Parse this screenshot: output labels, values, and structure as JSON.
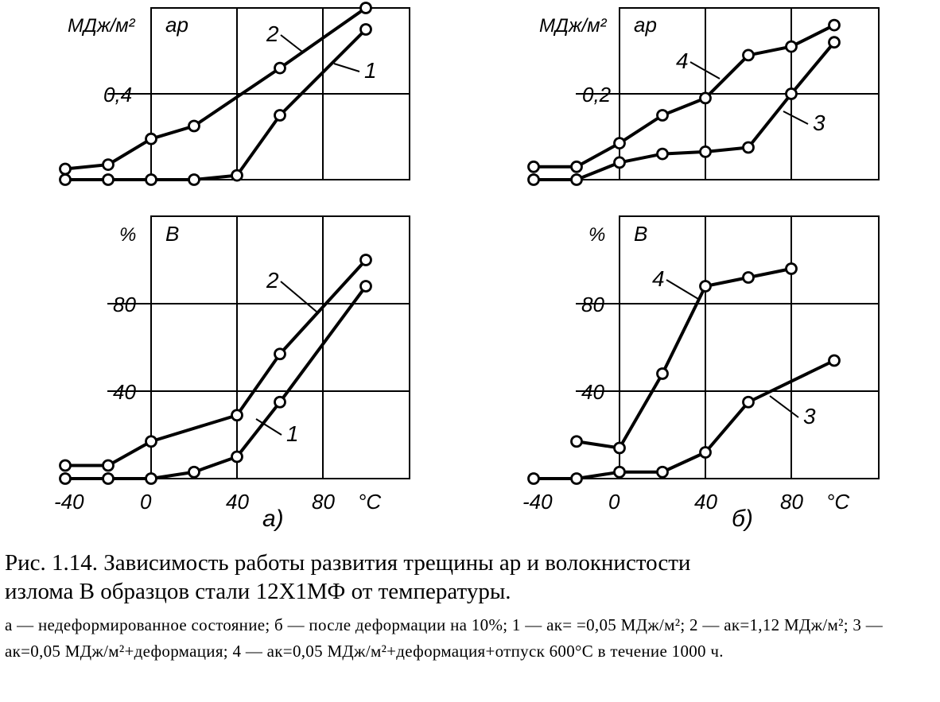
{
  "figure": {
    "panels": {
      "a": {
        "label": "а)"
      },
      "b": {
        "label": "б)"
      }
    },
    "x_ticks": [
      "-40",
      "0",
      "40",
      "80"
    ],
    "x_unit": "°C",
    "ap_units": "МДж/м²",
    "ap_symbol": "ap",
    "b_units": "%",
    "b_symbol": "B",
    "ap_tick_a": "0,4",
    "ap_tick_b": "0,2",
    "b_ticks": [
      "40",
      "80"
    ]
  },
  "caption": {
    "title_line1": "Рис. 1.14. Зависимость работы развития трещины ap и волокнистости",
    "title_line2": "излома B образцов стали 12Х1МФ от температуры.",
    "notes": "а — недеформированное состояние; б — после деформации на 10%; 1 — aк= =0,05 МДж/м²; 2 — aк=1,12 МДж/м²; 3 — aк=0,05 МДж/м²+деформация; 4 — aк=0,05 МДж/м²+деформация+отпуск 600°С в течение 1000 ч."
  },
  "chart_data": [
    {
      "type": "line",
      "panel": "а)",
      "title": "",
      "xlabel": "°C",
      "ylabel": "МДж/м² ap",
      "xlim": [
        -40,
        100
      ],
      "ylim": [
        0,
        0.8
      ],
      "grid": true,
      "series": [
        {
          "name": "1",
          "x": [
            -40,
            -20,
            0,
            20,
            40,
            60,
            100
          ],
          "y": [
            0,
            0,
            0,
            0,
            0.02,
            0.3,
            0.7
          ]
        },
        {
          "name": "2",
          "x": [
            -40,
            -20,
            0,
            20,
            60,
            100
          ],
          "y": [
            0.05,
            0.07,
            0.19,
            0.25,
            0.52,
            0.8
          ]
        }
      ]
    },
    {
      "type": "line",
      "panel": "а)",
      "title": "",
      "xlabel": "°C",
      "ylabel": "% B",
      "xlim": [
        -40,
        100
      ],
      "ylim": [
        0,
        120
      ],
      "grid": true,
      "series": [
        {
          "name": "1",
          "x": [
            -40,
            -20,
            0,
            20,
            40,
            60,
            100
          ],
          "y": [
            0,
            0,
            0,
            3,
            10,
            35,
            88
          ]
        },
        {
          "name": "2",
          "x": [
            -40,
            -20,
            0,
            40,
            60,
            100
          ],
          "y": [
            6,
            6,
            17,
            29,
            57,
            100
          ]
        }
      ]
    },
    {
      "type": "line",
      "panel": "б)",
      "title": "",
      "xlabel": "°C",
      "ylabel": "МДж/м² ap",
      "xlim": [
        -40,
        100
      ],
      "ylim": [
        0,
        0.4
      ],
      "grid": true,
      "series": [
        {
          "name": "3",
          "x": [
            -40,
            -20,
            0,
            20,
            40,
            60,
            80,
            100
          ],
          "y": [
            0,
            0,
            0.04,
            0.06,
            0.065,
            0.075,
            0.2,
            0.32
          ]
        },
        {
          "name": "4",
          "x": [
            -40,
            -20,
            0,
            20,
            40,
            60,
            80,
            100
          ],
          "y": [
            0.03,
            0.03,
            0.085,
            0.15,
            0.19,
            0.29,
            0.31,
            0.36
          ]
        }
      ]
    },
    {
      "type": "line",
      "panel": "б)",
      "title": "",
      "xlabel": "°C",
      "ylabel": "% B",
      "xlim": [
        -40,
        100
      ],
      "ylim": [
        0,
        120
      ],
      "grid": true,
      "series": [
        {
          "name": "3",
          "x": [
            -40,
            -20,
            0,
            20,
            40,
            60,
            100
          ],
          "y": [
            0,
            0,
            3,
            3,
            12,
            35,
            54
          ]
        },
        {
          "name": "4",
          "x": [
            -20,
            0,
            20,
            40,
            60,
            80
          ],
          "y": [
            17,
            14,
            48,
            88,
            92,
            96
          ]
        }
      ]
    }
  ]
}
